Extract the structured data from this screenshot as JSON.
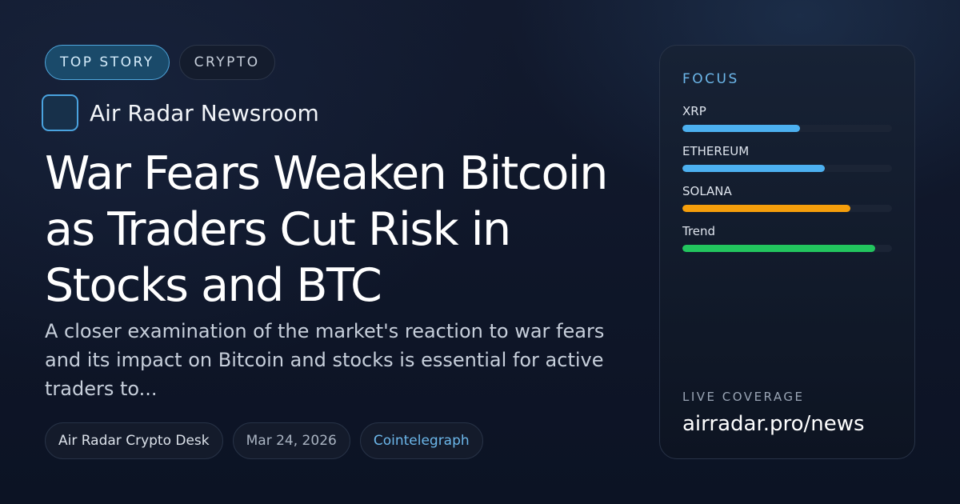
{
  "tags": [
    "TOP STORY",
    "CRYPTO"
  ],
  "newsroom": {
    "name": "Air Radar Newsroom"
  },
  "article": {
    "headline": "War Fears Weaken Bitcoin as Traders Cut Risk in Stocks and BTC",
    "summary": "A closer examination of the market's reaction to war fears and its impact on Bitcoin and stocks is essential for active traders to...",
    "author": "Air Radar Crypto Desk",
    "date": "Mar 24, 2026",
    "source": "Cointelegraph"
  },
  "focus": {
    "title": "FOCUS",
    "meters": [
      {
        "label": "XRP",
        "fill": 0.56,
        "color": "#4cb0f0"
      },
      {
        "label": "ETHEREUM",
        "fill": 0.68,
        "color": "#4cb0f0"
      },
      {
        "label": "SOLANA",
        "fill": 0.8,
        "color": "#f59e0b"
      },
      {
        "label": "Trend",
        "fill": 0.92,
        "color": "#22c55e"
      }
    ]
  },
  "live": {
    "label": "LIVE COVERAGE",
    "url": "airradar.pro/news"
  }
}
